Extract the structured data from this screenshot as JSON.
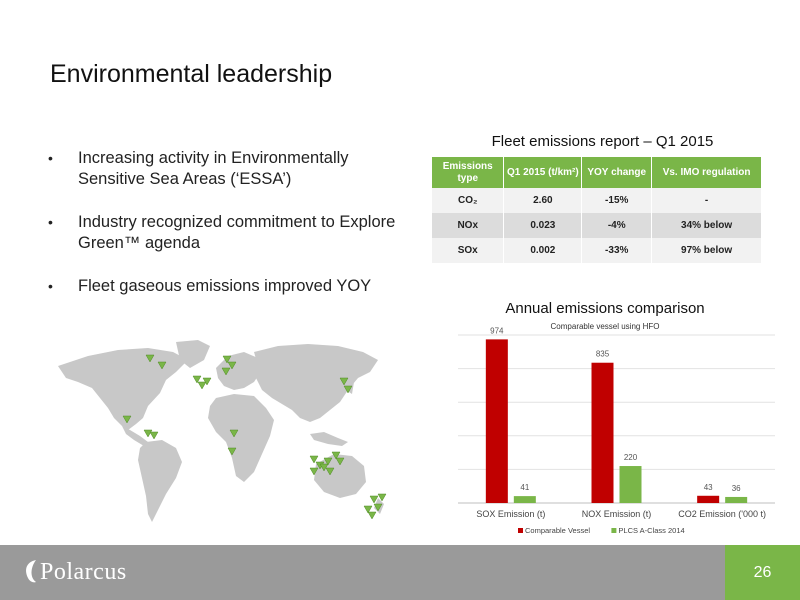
{
  "title": "Environmental leadership",
  "bullets": [
    "Increasing activity in Environmentally Sensitive Sea Areas (‘ESSA’)",
    "Industry recognized commitment to Explore Green™ agenda",
    "Fleet gaseous emissions improved YOY"
  ],
  "bullet_marker": "•",
  "table": {
    "title": "Fleet emissions report – Q1 2015",
    "headers": [
      "Emissions type",
      "Q1 2015 (t/km²)",
      "YOY change",
      "Vs. IMO regulation"
    ],
    "rows": [
      [
        "CO₂",
        "2.60",
        "-15%",
        "-"
      ],
      [
        "NOx",
        "0.023",
        "-4%",
        "34% below"
      ],
      [
        "SOx",
        "0.002",
        "-33%",
        "97% below"
      ]
    ]
  },
  "chart_data": {
    "type": "bar",
    "title": "Annual emissions comparison",
    "subtitle": "Comparable vessel using HFO",
    "categories": [
      "SOX Emission (t)",
      "NOX Emission (t)",
      "CO2 Emission ('000 t)"
    ],
    "series": [
      {
        "name": "Comparable Vessel",
        "values": [
          974,
          835,
          43
        ],
        "color": "#c00000"
      },
      {
        "name": "PLCS A-Class 2014",
        "values": [
          41,
          220,
          36
        ],
        "color": "#7ab648"
      }
    ],
    "ylim": [
      0,
      1000
    ],
    "grid": true,
    "legend": "bottom"
  },
  "map": {
    "land_color": "#c8c8c8",
    "marker_color": "#7ab648",
    "marker_icon": "triangle-down-icon"
  },
  "footer": {
    "logo": "Polarcus",
    "page_number": "26",
    "bg_color": "#9a9a9a",
    "accent": "#7ab648"
  }
}
